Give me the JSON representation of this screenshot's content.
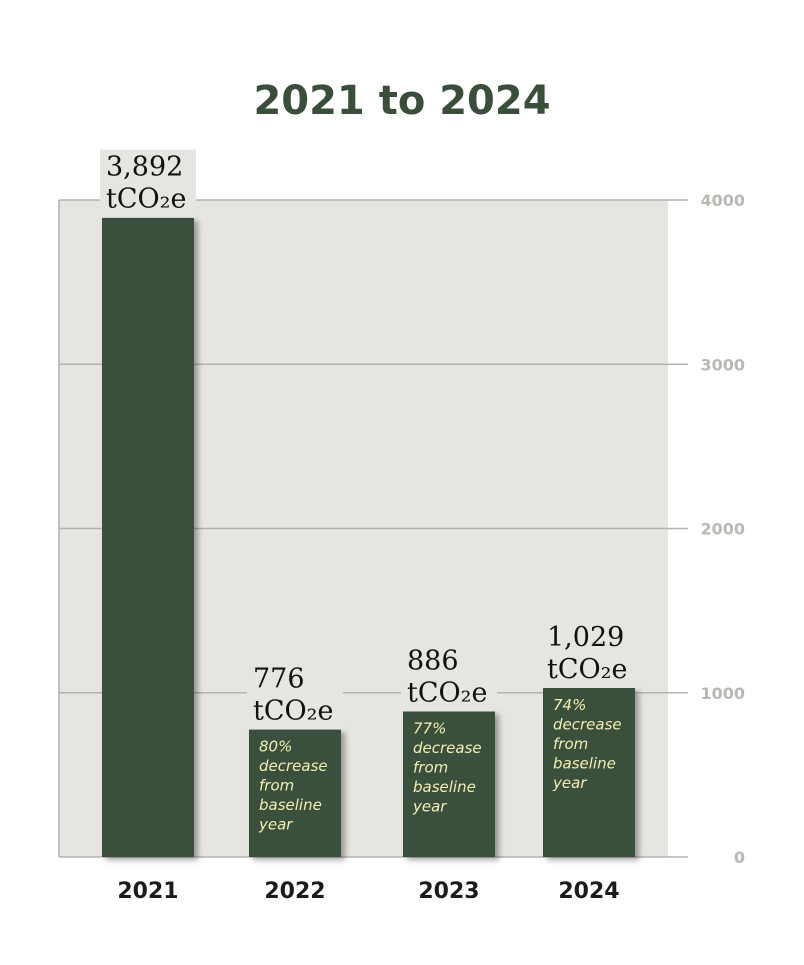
{
  "chart_data": {
    "type": "bar",
    "title": "2021 to 2024",
    "categories": [
      "2021",
      "2022",
      "2023",
      "2024"
    ],
    "values": [
      3892,
      776,
      886,
      1029
    ],
    "value_labels": [
      [
        "3,892",
        "tCO₂e"
      ],
      [
        "776",
        "tCO₂e"
      ],
      [
        "886",
        "tCO₂e"
      ],
      [
        "1,029",
        "tCO₂e"
      ]
    ],
    "bar_notes": [
      [],
      [
        "80%",
        "decrease",
        "from",
        "baseline",
        "year"
      ],
      [
        "77%",
        "decrease",
        "from",
        "baseline",
        "year"
      ],
      [
        "74%",
        "decrease",
        "from",
        "baseline",
        "year"
      ]
    ],
    "y_ticks": [
      0,
      1000,
      2000,
      3000,
      4000
    ],
    "ylim": [
      0,
      4000
    ],
    "grid": true,
    "axis_side": "right",
    "colors": {
      "bar": "#3b4f3c",
      "plot_background": "#e6e5df",
      "grid": "#b4b4ae",
      "tick_text": "#b9b9b4",
      "note_text": "#f2efb2",
      "title": "#3a4f3a"
    }
  }
}
